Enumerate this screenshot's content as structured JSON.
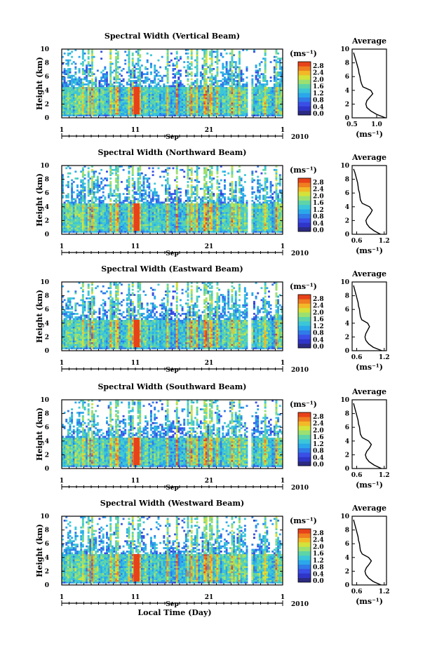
{
  "figure": {
    "xlabel": "Local Time (Day)",
    "month_label": "Sep",
    "year_label": "2010"
  },
  "colorbar": {
    "unit": "(ms⁻¹)",
    "ticks": [
      "0.0",
      "0.4",
      "0.8",
      "1.2",
      "1.6",
      "2.0",
      "2.4",
      "2.8"
    ],
    "colors": [
      "#2b2b83",
      "#2f35c9",
      "#3a4fe6",
      "#2f7be8",
      "#2aa8ea",
      "#3cc6d8",
      "#5ed4a8",
      "#9be070",
      "#d4e23a",
      "#f2b827",
      "#f07d20",
      "#e8421a"
    ]
  },
  "chart_data": [
    {
      "type": "heatmap",
      "title": "Spectral Width (Vertical Beam)",
      "ylabel": "Height (km)",
      "xticks": [
        "1",
        "11",
        "21",
        "1"
      ],
      "yticks": [
        "0",
        "2",
        "4",
        "6",
        "8",
        "10"
      ],
      "xlim_days": [
        1,
        31
      ],
      "ylim": [
        0,
        10
      ],
      "data_gap_days": [
        [
          26.2,
          26.8
        ]
      ],
      "high_width_layer_km": [
        0.5,
        4.5
      ],
      "profile": {
        "title": "Average",
        "xlabel": "(ms⁻¹)",
        "xticks": [
          "0.5",
          "1.0"
        ],
        "xlim": [
          0.5,
          1.2
        ],
        "heights": [
          0,
          0.5,
          1,
          1.5,
          2,
          2.5,
          3,
          3.5,
          4,
          4.5,
          5,
          5.5,
          6,
          6.5,
          7,
          7.5,
          8,
          8.5,
          9,
          9.5
        ],
        "values": [
          1.18,
          1.0,
          0.88,
          0.8,
          0.78,
          0.8,
          0.86,
          0.92,
          0.88,
          0.72,
          0.69,
          0.67,
          0.66,
          0.64,
          0.63,
          0.61,
          0.59,
          0.57,
          0.55,
          0.53
        ]
      }
    },
    {
      "type": "heatmap",
      "title": "Spectral Width (Northward Beam)",
      "ylabel": "Height (km)",
      "xticks": [
        "1",
        "11",
        "21",
        "1"
      ],
      "yticks": [
        "0",
        "2",
        "4",
        "6",
        "8",
        "10"
      ],
      "xlim_days": [
        1,
        31
      ],
      "ylim": [
        0,
        10
      ],
      "data_gap_days": [
        [
          26.2,
          26.8
        ]
      ],
      "high_width_layer_km": [
        0.5,
        4.5
      ],
      "profile": {
        "title": "Average",
        "xlabel": "(ms⁻¹)",
        "xticks": [
          "0.6",
          "1.2"
        ],
        "xlim": [
          0.5,
          1.25
        ],
        "heights": [
          0,
          0.5,
          1,
          1.5,
          2,
          2.5,
          3,
          3.5,
          4,
          4.5,
          5,
          5.5,
          6,
          6.5,
          7,
          7.5,
          8,
          8.5,
          9,
          9.5
        ],
        "values": [
          1.12,
          0.98,
          0.88,
          0.82,
          0.8,
          0.84,
          0.9,
          0.94,
          0.88,
          0.72,
          0.68,
          0.67,
          0.66,
          0.64,
          0.63,
          0.62,
          0.6,
          0.58,
          0.56,
          0.53
        ]
      }
    },
    {
      "type": "heatmap",
      "title": "Spectral Width (Eastward Beam)",
      "ylabel": "Height (km)",
      "xticks": [
        "1",
        "11",
        "21",
        "1"
      ],
      "yticks": [
        "0",
        "2",
        "4",
        "6",
        "8",
        "10"
      ],
      "xlim_days": [
        1,
        31
      ],
      "ylim": [
        0,
        10
      ],
      "data_gap_days": [
        [
          26.2,
          26.8
        ]
      ],
      "high_width_layer_km": [
        0.5,
        4.5
      ],
      "profile": {
        "title": "Average",
        "xlabel": "(ms⁻¹)",
        "xticks": [
          "0.6",
          "1.2"
        ],
        "xlim": [
          0.5,
          1.25
        ],
        "heights": [
          0,
          0.5,
          1,
          1.5,
          2,
          2.5,
          3,
          3.5,
          4,
          4.5,
          5,
          5.5,
          6,
          6.5,
          7,
          7.5,
          8,
          8.5,
          9,
          9.5
        ],
        "values": [
          1.15,
          0.96,
          0.86,
          0.8,
          0.78,
          0.8,
          0.84,
          0.88,
          0.84,
          0.71,
          0.68,
          0.67,
          0.66,
          0.64,
          0.63,
          0.61,
          0.59,
          0.57,
          0.55,
          0.53
        ]
      }
    },
    {
      "type": "heatmap",
      "title": "Spectral Width (Southward Beam)",
      "ylabel": "Height (km)",
      "xticks": [
        "1",
        "11",
        "21",
        "1"
      ],
      "yticks": [
        "0",
        "2",
        "4",
        "6",
        "8",
        "10"
      ],
      "xlim_days": [
        1,
        31
      ],
      "ylim": [
        0,
        10
      ],
      "data_gap_days": [
        [
          26.2,
          26.8
        ]
      ],
      "high_width_layer_km": [
        0.5,
        4.5
      ],
      "profile": {
        "title": "Average",
        "xlabel": "(ms⁻¹)",
        "xticks": [
          "0.6",
          "1.2"
        ],
        "xlim": [
          0.5,
          1.25
        ],
        "heights": [
          0,
          0.5,
          1,
          1.5,
          2,
          2.5,
          3,
          3.5,
          4,
          4.5,
          5,
          5.5,
          6,
          6.5,
          7,
          7.5,
          8,
          8.5,
          9,
          9.5
        ],
        "values": [
          1.14,
          0.98,
          0.87,
          0.81,
          0.79,
          0.82,
          0.88,
          0.92,
          0.86,
          0.72,
          0.68,
          0.67,
          0.66,
          0.64,
          0.63,
          0.61,
          0.59,
          0.57,
          0.55,
          0.53
        ]
      }
    },
    {
      "type": "heatmap",
      "title": "Spectral Width (Westward Beam)",
      "ylabel": "Height (km)",
      "xticks": [
        "1",
        "11",
        "21",
        "1"
      ],
      "yticks": [
        "0",
        "2",
        "4",
        "6",
        "8",
        "10"
      ],
      "xlim_days": [
        1,
        31
      ],
      "ylim": [
        0,
        10
      ],
      "data_gap_days": [
        [
          26.2,
          26.8
        ]
      ],
      "high_width_layer_km": [
        0.5,
        4.5
      ],
      "profile": {
        "title": "Average",
        "xlabel": "(ms⁻¹)",
        "xticks": [
          "0.6",
          "1.2"
        ],
        "xlim": [
          0.5,
          1.25
        ],
        "heights": [
          0,
          0.5,
          1,
          1.5,
          2,
          2.5,
          3,
          3.5,
          4,
          4.5,
          5,
          5.5,
          6,
          6.5,
          7,
          7.5,
          8,
          8.5,
          9,
          9.5
        ],
        "values": [
          1.13,
          0.96,
          0.86,
          0.8,
          0.78,
          0.81,
          0.87,
          0.92,
          0.86,
          0.72,
          0.68,
          0.67,
          0.66,
          0.64,
          0.63,
          0.61,
          0.59,
          0.57,
          0.55,
          0.53
        ]
      }
    }
  ]
}
